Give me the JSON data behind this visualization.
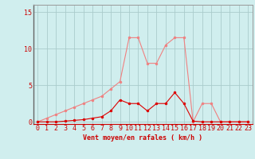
{
  "title": "",
  "xlabel": "Vent moyen/en rafales ( km/h )",
  "x_values": [
    0,
    1,
    2,
    3,
    4,
    5,
    6,
    7,
    8,
    9,
    10,
    11,
    12,
    13,
    14,
    15,
    16,
    17,
    18,
    19,
    20,
    21,
    22,
    23
  ],
  "light_line": [
    0.0,
    0.5,
    1.0,
    1.5,
    2.0,
    2.5,
    3.0,
    3.5,
    4.5,
    5.5,
    11.5,
    11.5,
    8.0,
    8.0,
    10.5,
    11.5,
    11.5,
    0.0,
    2.5,
    2.5,
    0.0,
    0.0,
    0.0,
    0.0
  ],
  "dark_line": [
    0.0,
    0.0,
    0.0,
    0.1,
    0.2,
    0.3,
    0.5,
    0.7,
    1.5,
    3.0,
    2.5,
    2.5,
    1.5,
    2.5,
    2.5,
    4.0,
    2.5,
    0.1,
    0.0,
    0.0,
    0.0,
    0.0,
    0.0,
    0.0
  ],
  "light_color": "#f08080",
  "dark_color": "#dd0000",
  "bg_color": "#d0eeee",
  "grid_color": "#aacccc",
  "yticks": [
    0,
    5,
    10,
    15
  ],
  "ylim": [
    -0.3,
    16.0
  ],
  "xlim": [
    -0.5,
    23.5
  ],
  "xlabel_fontsize": 6.0,
  "tick_fontsize": 6.0,
  "marker_size": 2.0,
  "linewidth": 0.8
}
